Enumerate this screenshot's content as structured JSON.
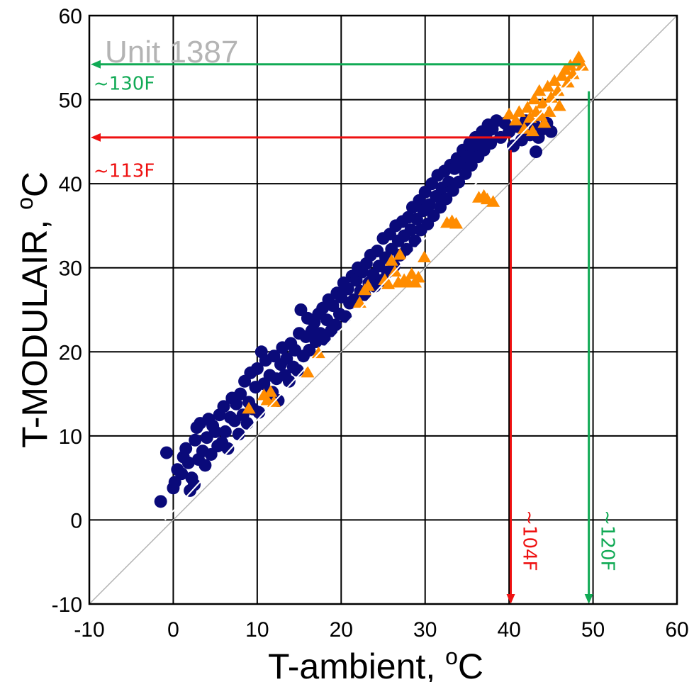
{
  "chart_data": {
    "type": "scatter",
    "title": "Unit 1387",
    "xlabel": {
      "text": "T-ambient, ",
      "sup": "o",
      "unit": "C"
    },
    "ylabel": {
      "text": "T-MODULAIR, ",
      "sup": "o",
      "unit": "C"
    },
    "xlim": [
      -10,
      60
    ],
    "ylim": [
      -10,
      60
    ],
    "xticks": [
      "-10",
      "0",
      "10",
      "20",
      "30",
      "40",
      "50",
      "60"
    ],
    "yticks": [
      "-10",
      "0",
      "10",
      "20",
      "30",
      "40",
      "50",
      "60"
    ],
    "grid": true,
    "legend": "none",
    "colors": {
      "circles": "#0a0a7a",
      "triangles": "#ff8c00",
      "red_annotation": "#ee1111",
      "green_annotation": "#11aa55",
      "identity_line": "#b4b4b4",
      "fit_line": "#ffffff"
    },
    "identity_line": {
      "from": [
        -10,
        -10
      ],
      "to": [
        60,
        60
      ]
    },
    "fit_line": {
      "from": [
        -1,
        0
      ],
      "to": [
        49,
        54
      ]
    },
    "series": [
      {
        "marker": "circle",
        "color": "#0a0a7a",
        "points": [
          [
            -1.5,
            2.2
          ],
          [
            0,
            3.8
          ],
          [
            0.2,
            4.5
          ],
          [
            -0.8,
            8
          ],
          [
            0.5,
            6
          ],
          [
            1,
            5.5
          ],
          [
            1.2,
            7.5
          ],
          [
            1.5,
            8.5
          ],
          [
            1.8,
            6.8
          ],
          [
            2,
            3.5
          ],
          [
            2.2,
            5
          ],
          [
            2.5,
            4.2
          ],
          [
            2.6,
            9.5
          ],
          [
            2.8,
            11
          ],
          [
            3,
            7.2
          ],
          [
            3.2,
            11.5
          ],
          [
            3.5,
            8.2
          ],
          [
            3.8,
            6.5
          ],
          [
            4,
            9.8
          ],
          [
            4.2,
            12
          ],
          [
            4.5,
            7.8
          ],
          [
            4.7,
            11.2
          ],
          [
            5,
            10.5
          ],
          [
            5.3,
            8.8
          ],
          [
            5.5,
            12.5
          ],
          [
            5.8,
            9.2
          ],
          [
            6,
            13.5
          ],
          [
            6.2,
            10.5
          ],
          [
            6.5,
            8.5
          ],
          [
            6.8,
            12.2
          ],
          [
            7,
            14.5
          ],
          [
            7.3,
            11.8
          ],
          [
            7.5,
            13.8
          ],
          [
            7.8,
            10.2
          ],
          [
            8,
            15
          ],
          [
            8.3,
            12.5
          ],
          [
            8.5,
            16.5
          ],
          [
            8.8,
            11.5
          ],
          [
            9,
            14
          ],
          [
            9.2,
            17.5
          ],
          [
            9.5,
            13.2
          ],
          [
            9.8,
            15.8
          ],
          [
            10,
            18
          ],
          [
            10.2,
            12.8
          ],
          [
            10.5,
            20
          ],
          [
            10.8,
            16.2
          ],
          [
            11,
            19
          ],
          [
            11.2,
            14.8
          ],
          [
            11.5,
            17.2
          ],
          [
            11.8,
            15.2
          ],
          [
            12,
            19.5
          ],
          [
            12.3,
            16.8
          ],
          [
            12.5,
            14.2
          ],
          [
            12.8,
            18.5
          ],
          [
            13,
            20.5
          ],
          [
            13.3,
            17.2
          ],
          [
            13.5,
            19.2
          ],
          [
            13.8,
            16.5
          ],
          [
            14,
            21
          ],
          [
            14.3,
            18.2
          ],
          [
            14.5,
            20.2
          ],
          [
            14.8,
            17.8
          ],
          [
            15,
            22.2
          ],
          [
            15.2,
            25
          ],
          [
            15.5,
            19.5
          ],
          [
            15.8,
            21.8
          ],
          [
            16,
            24
          ],
          [
            16.2,
            20.2
          ],
          [
            16.5,
            22.5
          ],
          [
            16.8,
            23.5
          ],
          [
            17,
            21.2
          ],
          [
            17.3,
            24.5
          ],
          [
            17.5,
            22.2
          ],
          [
            17.8,
            25.2
          ],
          [
            18,
            21.5
          ],
          [
            18.3,
            23.8
          ],
          [
            18.5,
            26.2
          ],
          [
            18.8,
            22.5
          ],
          [
            19,
            25.5
          ],
          [
            19.3,
            23.2
          ],
          [
            19.5,
            27
          ],
          [
            19.8,
            24.5
          ],
          [
            20,
            26.5
          ],
          [
            20.3,
            28.2
          ],
          [
            20.5,
            24.2
          ],
          [
            20.8,
            27.5
          ],
          [
            21,
            25.8
          ],
          [
            21.3,
            29
          ],
          [
            21.5,
            26.2
          ],
          [
            21.8,
            28.5
          ],
          [
            22,
            30
          ],
          [
            22.3,
            27.2
          ],
          [
            22.5,
            29.5
          ],
          [
            22.8,
            26.8
          ],
          [
            23,
            30.5
          ],
          [
            23.3,
            28.2
          ],
          [
            23.5,
            31.5
          ],
          [
            23.8,
            29.2
          ],
          [
            24,
            27.8
          ],
          [
            24.3,
            32
          ],
          [
            24.5,
            30.2
          ],
          [
            24.8,
            28.5
          ],
          [
            25,
            33.5
          ],
          [
            25.3,
            31.2
          ],
          [
            25.5,
            29.5
          ],
          [
            25.8,
            34
          ],
          [
            26,
            32.2
          ],
          [
            26.3,
            30.2
          ],
          [
            26.5,
            35
          ],
          [
            26.8,
            33.2
          ],
          [
            27,
            31.5
          ],
          [
            27.3,
            35.5
          ],
          [
            27.5,
            33.8
          ],
          [
            27.8,
            32.2
          ],
          [
            28,
            36
          ],
          [
            28.3,
            34.5
          ],
          [
            28.5,
            37.2
          ],
          [
            28.8,
            33.2
          ],
          [
            29,
            35.8
          ],
          [
            29.3,
            38
          ],
          [
            29.5,
            34.5
          ],
          [
            29.8,
            36.8
          ],
          [
            30,
            39
          ],
          [
            30.3,
            35.2
          ],
          [
            30.5,
            37.5
          ],
          [
            30.8,
            40
          ],
          [
            31,
            36.2
          ],
          [
            31.3,
            38.5
          ],
          [
            31.5,
            41
          ],
          [
            31.8,
            37.2
          ],
          [
            32,
            39.5
          ],
          [
            32.3,
            41.5
          ],
          [
            32.5,
            38.2
          ],
          [
            32.8,
            40.2
          ],
          [
            33,
            42.2
          ],
          [
            33.3,
            39.2
          ],
          [
            33.5,
            41.8
          ],
          [
            33.8,
            43
          ],
          [
            34,
            40.2
          ],
          [
            34.3,
            42.5
          ],
          [
            34.5,
            44
          ],
          [
            34.8,
            41.2
          ],
          [
            35,
            43.2
          ],
          [
            35.3,
            44.8
          ],
          [
            35.5,
            42.2
          ],
          [
            35.8,
            44.2
          ],
          [
            36,
            45.5
          ],
          [
            36.3,
            43.2
          ],
          [
            36.5,
            45
          ],
          [
            36.8,
            46.2
          ],
          [
            37,
            44
          ],
          [
            37.3,
            46
          ],
          [
            37.5,
            47
          ],
          [
            37.8,
            44.8
          ],
          [
            38,
            46.5
          ],
          [
            38.5,
            47.5
          ],
          [
            39,
            45.5
          ],
          [
            39.5,
            47.2
          ],
          [
            40,
            46.2
          ],
          [
            40.5,
            44.5
          ],
          [
            41,
            46.8
          ],
          [
            41.5,
            45.2
          ],
          [
            42,
            47.5
          ],
          [
            42.5,
            45.8
          ],
          [
            43,
            47
          ],
          [
            43.2,
            43.8
          ],
          [
            43.5,
            45.5
          ],
          [
            44,
            46.5
          ],
          [
            44.5,
            47.2
          ],
          [
            45,
            46.2
          ]
        ]
      },
      {
        "marker": "triangle",
        "color": "#ff8c00",
        "points": [
          [
            9,
            13.2
          ],
          [
            10.8,
            14.8
          ],
          [
            11.2,
            14.2
          ],
          [
            11.6,
            15.2
          ],
          [
            12,
            14
          ],
          [
            16,
            17.5
          ],
          [
            17.3,
            19.8
          ],
          [
            22.2,
            25.8
          ],
          [
            22.8,
            27.3
          ],
          [
            23.2,
            27.8
          ],
          [
            25.2,
            28.5
          ],
          [
            25.6,
            28
          ],
          [
            26,
            30.8
          ],
          [
            26.4,
            29.5
          ],
          [
            26.8,
            28.2
          ],
          [
            27,
            31.5
          ],
          [
            27.5,
            28.5
          ],
          [
            28,
            28.2
          ],
          [
            28.4,
            29.2
          ],
          [
            28.8,
            28.2
          ],
          [
            29.2,
            28.8
          ],
          [
            29.9,
            31.2
          ],
          [
            32.6,
            35.3
          ],
          [
            33.2,
            35.5
          ],
          [
            33.7,
            35.2
          ],
          [
            36.4,
            38.3
          ],
          [
            37,
            38.5
          ],
          [
            37.4,
            38.1
          ],
          [
            38.1,
            37.8
          ],
          [
            40,
            48.2
          ],
          [
            40.8,
            47.5
          ],
          [
            41.2,
            48.5
          ],
          [
            41.8,
            46.5
          ],
          [
            42.2,
            49
          ],
          [
            42.5,
            47.8
          ],
          [
            43,
            50
          ],
          [
            43.2,
            48.5
          ],
          [
            43.6,
            51
          ],
          [
            44,
            49.5
          ],
          [
            44.2,
            47.2
          ],
          [
            44.6,
            51.5
          ],
          [
            45,
            50.2
          ],
          [
            45.4,
            52.2
          ],
          [
            45.8,
            51
          ],
          [
            46,
            49.2
          ],
          [
            46.3,
            52.8
          ],
          [
            46.7,
            53.5
          ],
          [
            47,
            52
          ],
          [
            47.3,
            54
          ],
          [
            47.6,
            53
          ],
          [
            48,
            54.5
          ],
          [
            48.3,
            55
          ],
          [
            48.7,
            54
          ],
          [
            44.8,
            48.5
          ],
          [
            43.8,
            48
          ],
          [
            42.8,
            46.2
          ]
        ]
      }
    ],
    "annotations": [
      {
        "label": "~130F",
        "color": "#11aa55",
        "type": "horizontal",
        "y": 54.2,
        "x_from": 48.5,
        "x_to": -10,
        "label_at": [
          -9.5,
          51.2
        ]
      },
      {
        "label": "~113F",
        "color": "#ee1111",
        "type": "horizontal",
        "y": 45.5,
        "x_from": 40.2,
        "x_to": -10,
        "label_at": [
          -9.5,
          40.8
        ]
      },
      {
        "label": "~104F",
        "color": "#ee1111",
        "type": "vertical",
        "x": 40.2,
        "y_from": 44,
        "y_to": -10,
        "label_at": [
          41.7,
          1.2
        ]
      },
      {
        "label": "~120F",
        "color": "#11aa55",
        "type": "vertical",
        "x": 49.5,
        "y_from": 51,
        "y_to": -10,
        "label_at": [
          51,
          1.2
        ]
      }
    ]
  }
}
